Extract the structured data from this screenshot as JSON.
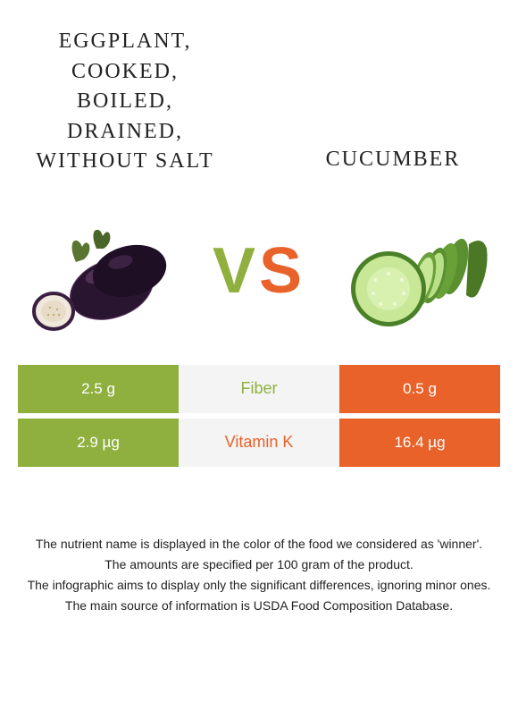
{
  "titles": {
    "left": "EGGPLANT, COOKED, BOILED, DRAINED, WITHOUT SALT",
    "right": "CUCUMBER"
  },
  "vs": {
    "v": "V",
    "s": "S"
  },
  "colors": {
    "left": "#8fb03e",
    "right": "#e8622a",
    "mid_bg": "#f4f4f4",
    "text_winner_left": "#8fb03e",
    "text_winner_right": "#e8622a"
  },
  "rows": [
    {
      "left_value": "2.5 g",
      "nutrient": "Fiber",
      "right_value": "0.5 g",
      "winner": "left"
    },
    {
      "left_value": "2.9 µg",
      "nutrient": "Vitamin K",
      "right_value": "16.4 µg",
      "winner": "right"
    }
  ],
  "footnotes": [
    "The nutrient name is displayed in the color of the food we considered as 'winner'.",
    "The amounts are specified per 100 gram of the product.",
    "The infographic aims to display only the significant differences, ignoring minor ones.",
    "The main source of information is USDA Food Composition Database."
  ]
}
